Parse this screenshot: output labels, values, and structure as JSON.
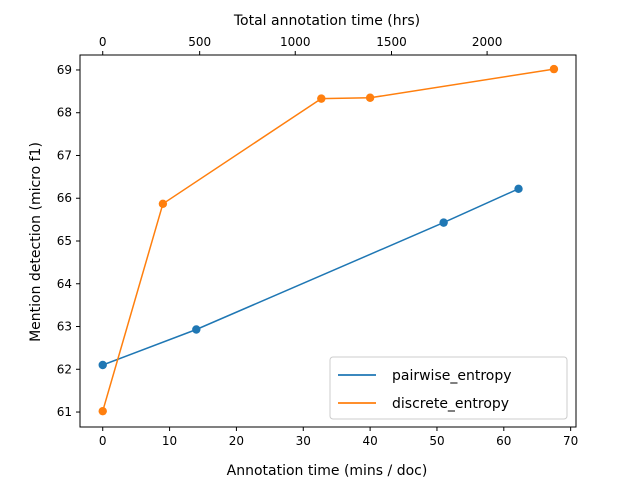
{
  "chart_data": {
    "type": "line",
    "xlabel": "Annotation time (mins / doc)",
    "ylabel": "Mention detection (micro f1)",
    "top_xlabel": "Total annotation time (hrs)",
    "xlim": [
      -3.4,
      70.8
    ],
    "ylim": [
      60.65,
      69.35
    ],
    "x_ticks": [
      0,
      10,
      20,
      30,
      40,
      50,
      60,
      70
    ],
    "y_ticks": [
      61,
      62,
      63,
      64,
      65,
      66,
      67,
      68,
      69
    ],
    "top_ticks": [
      {
        "label": "0",
        "bottom_x": 0
      },
      {
        "label": "500",
        "bottom_x": 14.5
      },
      {
        "label": "1000",
        "bottom_x": 28.8
      },
      {
        "label": "1500",
        "bottom_x": 43.2
      },
      {
        "label": "2000",
        "bottom_x": 57.5
      }
    ],
    "legend_position": "lower-right",
    "series": [
      {
        "name": "pairwise_entropy",
        "color": "#1f77b4",
        "points": [
          [
            0,
            62.1
          ],
          [
            14,
            62.93
          ],
          [
            51,
            65.43
          ],
          [
            62.2,
            66.22
          ]
        ]
      },
      {
        "name": "discrete_entropy",
        "color": "#ff7f0e",
        "points": [
          [
            0,
            61.02
          ],
          [
            9,
            65.87
          ],
          [
            32.7,
            68.33
          ],
          [
            40,
            68.35
          ],
          [
            67.5,
            69.02
          ]
        ]
      }
    ]
  }
}
